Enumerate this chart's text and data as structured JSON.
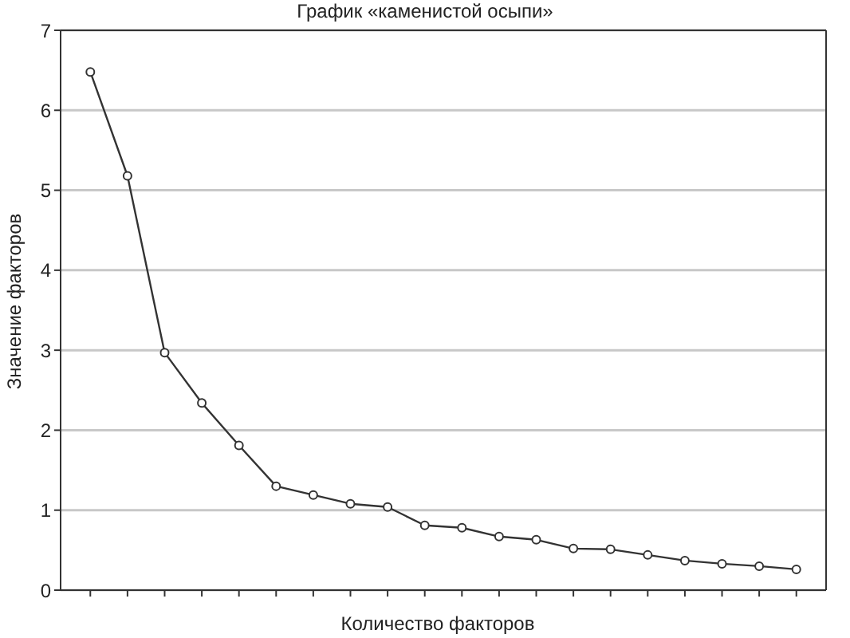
{
  "chart_data": {
    "type": "line",
    "title": "График «каменистой осыпи»",
    "xlabel": "Количество факторов",
    "ylabel": "Значение факторов",
    "categories": [
      null,
      null,
      null,
      null,
      null,
      null,
      null,
      null,
      null,
      null,
      null,
      null,
      null,
      null,
      null,
      null,
      null,
      null,
      null,
      null
    ],
    "series": [
      {
        "color": "#333333",
        "values": [
          6.48,
          5.18,
          2.97,
          2.34,
          1.81,
          1.3,
          1.19,
          1.08,
          1.04,
          0.81,
          0.78,
          0.67,
          0.63,
          0.52,
          0.51,
          0.44,
          0.37,
          0.33,
          0.3,
          0.26
        ]
      }
    ],
    "ylim": [
      0,
      7
    ],
    "yticks": [
      0,
      1,
      2,
      3,
      4,
      5,
      6,
      7
    ],
    "grid": "y",
    "marker": "circle",
    "line_style": "solid",
    "tick_labels": "y"
  }
}
